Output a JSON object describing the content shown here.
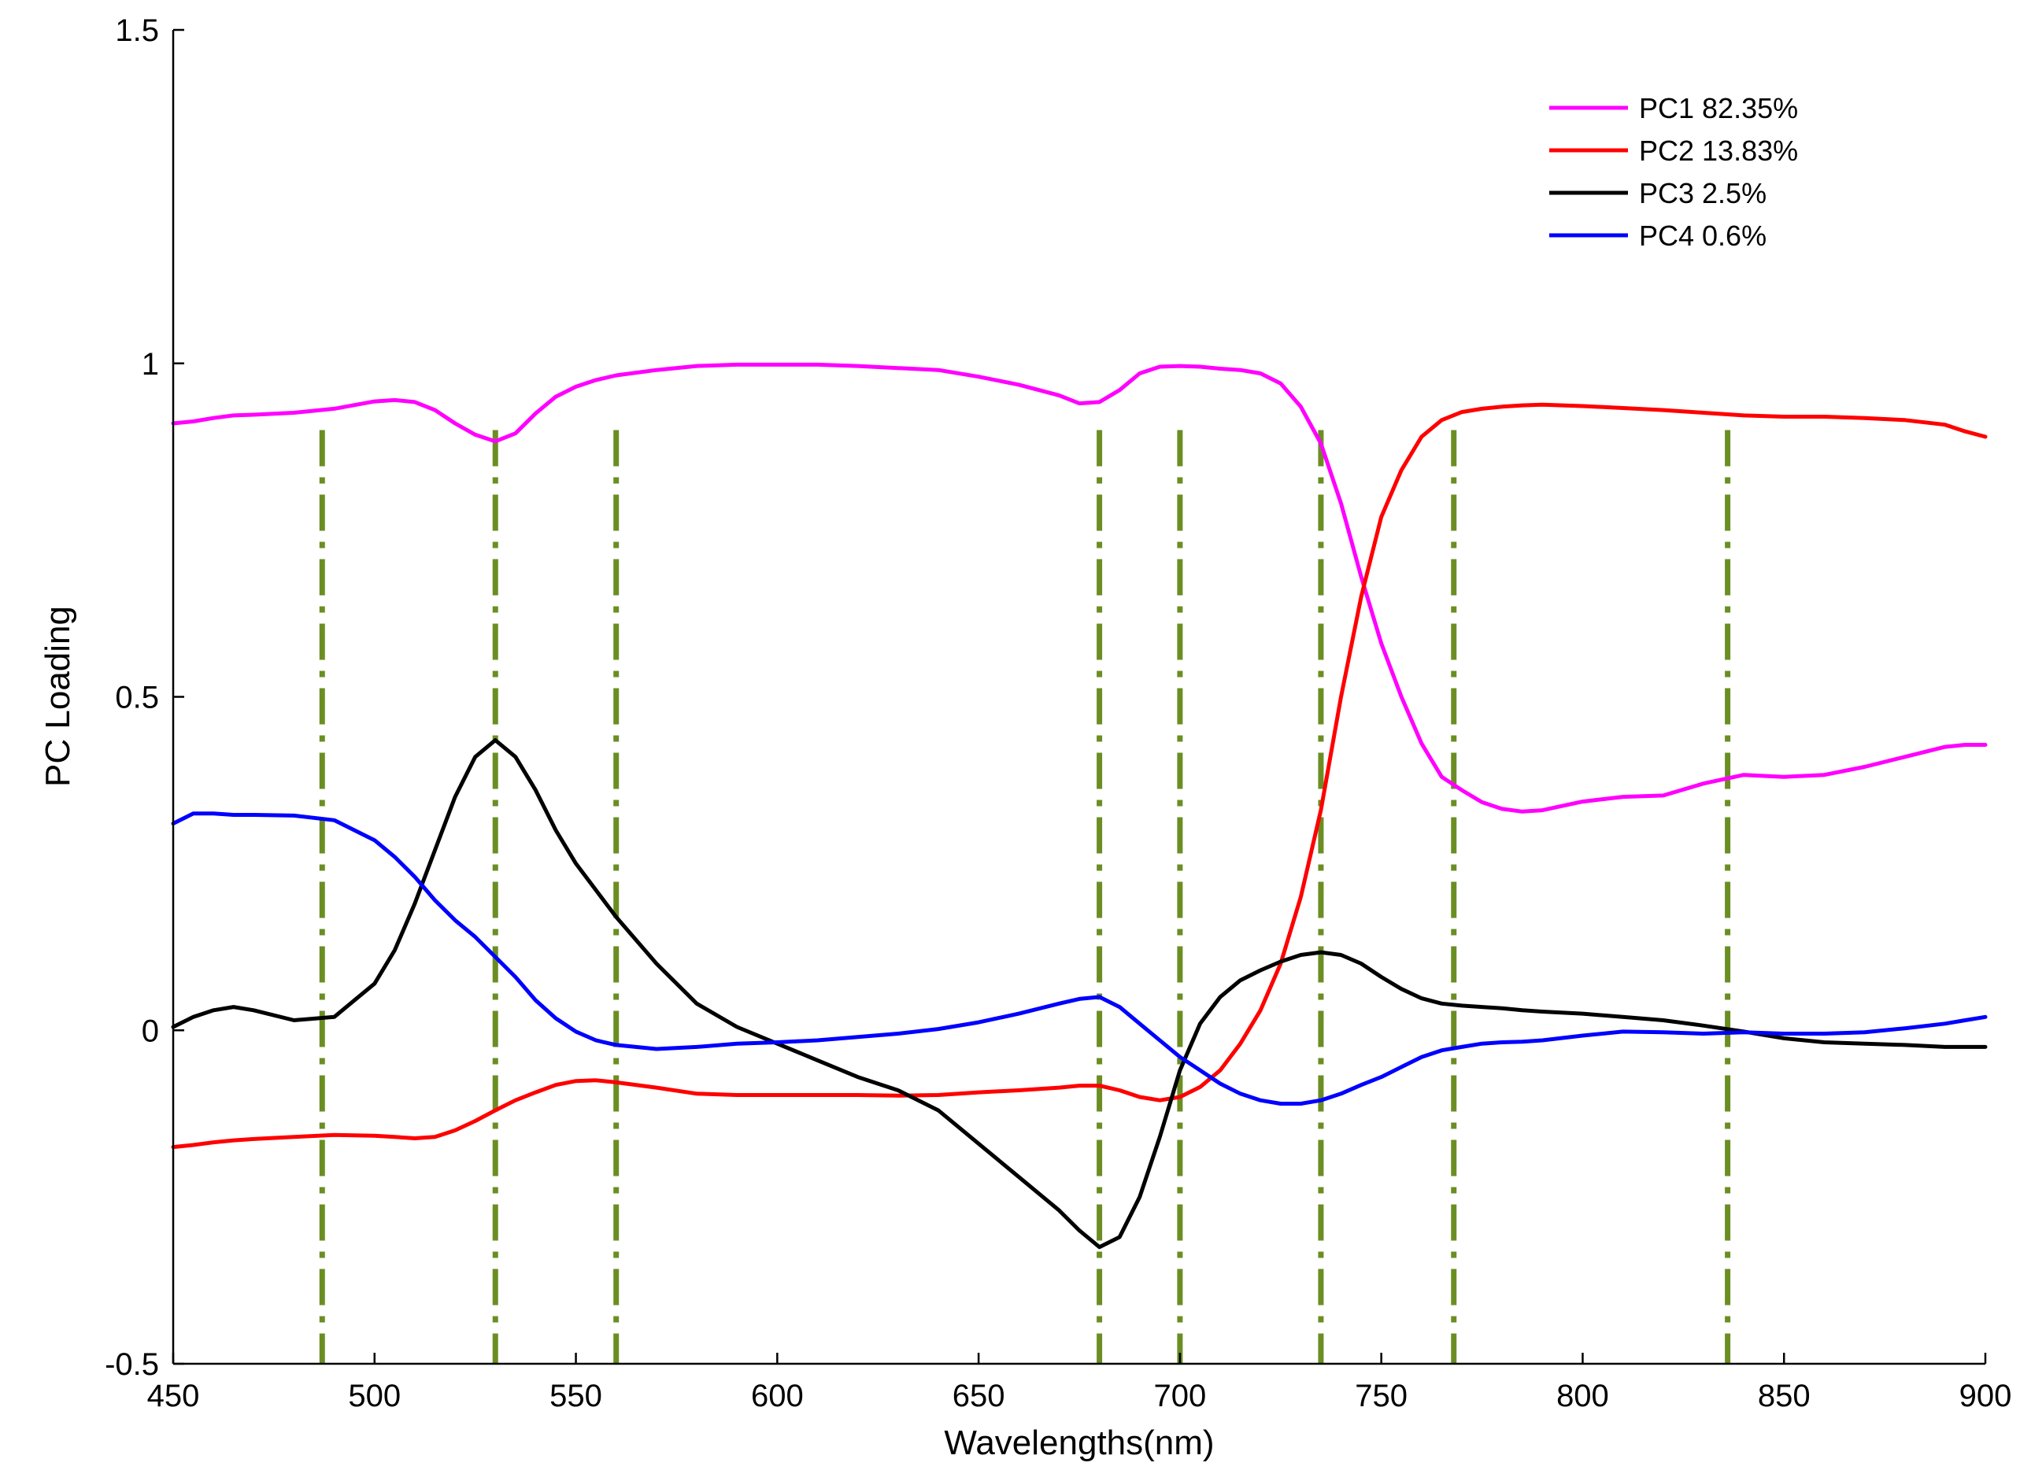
{
  "chart_data": {
    "type": "line",
    "title": "",
    "xlabel": "Wavelengths(nm)",
    "ylabel": "PC Loading",
    "xlim": [
      450,
      900
    ],
    "ylim": [
      -0.5,
      1.5
    ],
    "xticks": [
      450,
      500,
      550,
      600,
      650,
      700,
      750,
      800,
      850,
      900
    ],
    "yticks": [
      -0.5,
      0,
      0.5,
      1,
      1.5
    ],
    "xtick_labels": [
      "450",
      "500",
      "550",
      "600",
      "650",
      "700",
      "750",
      "800",
      "850",
      "900"
    ],
    "ytick_labels": [
      "-0.5",
      "0",
      "0.5",
      "1",
      "1.5"
    ],
    "grid": false,
    "legend_position": "top-right",
    "series": [
      {
        "name": "PC1 82.35%",
        "color": "#ff00ff",
        "x": [
          450,
          455,
          460,
          465,
          470,
          480,
          490,
          500,
          505,
          510,
          515,
          520,
          525,
          530,
          535,
          540,
          545,
          550,
          555,
          560,
          570,
          580,
          590,
          600,
          610,
          620,
          630,
          640,
          650,
          660,
          670,
          675,
          680,
          685,
          690,
          695,
          700,
          705,
          710,
          715,
          720,
          725,
          730,
          735,
          740,
          745,
          750,
          755,
          760,
          765,
          770,
          775,
          780,
          785,
          790,
          800,
          810,
          820,
          830,
          840,
          850,
          860,
          870,
          880,
          890,
          895,
          900
        ],
        "y": [
          0.91,
          0.913,
          0.918,
          0.922,
          0.923,
          0.926,
          0.932,
          0.943,
          0.945,
          0.942,
          0.93,
          0.91,
          0.893,
          0.883,
          0.895,
          0.925,
          0.95,
          0.965,
          0.975,
          0.982,
          0.99,
          0.996,
          0.998,
          0.998,
          0.998,
          0.996,
          0.993,
          0.99,
          0.98,
          0.968,
          0.952,
          0.94,
          0.942,
          0.96,
          0.985,
          0.995,
          0.996,
          0.995,
          0.992,
          0.99,
          0.985,
          0.97,
          0.935,
          0.88,
          0.79,
          0.68,
          0.58,
          0.5,
          0.43,
          0.38,
          0.36,
          0.342,
          0.332,
          0.328,
          0.33,
          0.343,
          0.35,
          0.352,
          0.37,
          0.383,
          0.38,
          0.383,
          0.395,
          0.41,
          0.425,
          0.428,
          0.428
        ]
      },
      {
        "name": "PC2 13.83%",
        "color": "#ff0000",
        "x": [
          450,
          455,
          460,
          465,
          470,
          480,
          490,
          500,
          505,
          510,
          515,
          520,
          525,
          530,
          535,
          540,
          545,
          550,
          555,
          560,
          570,
          580,
          590,
          600,
          610,
          620,
          630,
          640,
          650,
          660,
          670,
          675,
          680,
          685,
          690,
          695,
          700,
          705,
          710,
          715,
          720,
          725,
          730,
          735,
          740,
          745,
          750,
          755,
          760,
          765,
          770,
          775,
          780,
          785,
          790,
          800,
          810,
          820,
          830,
          840,
          850,
          860,
          870,
          880,
          890,
          895,
          900
        ],
        "y": [
          -0.175,
          -0.172,
          -0.168,
          -0.165,
          -0.163,
          -0.16,
          -0.157,
          -0.158,
          -0.16,
          -0.162,
          -0.16,
          -0.15,
          -0.136,
          -0.12,
          -0.105,
          -0.093,
          -0.082,
          -0.076,
          -0.075,
          -0.078,
          -0.086,
          -0.095,
          -0.097,
          -0.097,
          -0.097,
          -0.097,
          -0.098,
          -0.097,
          -0.093,
          -0.09,
          -0.086,
          -0.083,
          -0.083,
          -0.09,
          -0.1,
          -0.105,
          -0.1,
          -0.085,
          -0.06,
          -0.02,
          0.03,
          0.1,
          0.2,
          0.33,
          0.5,
          0.65,
          0.77,
          0.84,
          0.89,
          0.915,
          0.927,
          0.932,
          0.935,
          0.937,
          0.938,
          0.936,
          0.933,
          0.93,
          0.926,
          0.922,
          0.92,
          0.92,
          0.918,
          0.915,
          0.908,
          0.898,
          0.89
        ]
      },
      {
        "name": "PC3 2.5%",
        "color": "#000000",
        "x": [
          450,
          455,
          460,
          465,
          470,
          480,
          490,
          500,
          505,
          510,
          515,
          520,
          525,
          530,
          535,
          540,
          545,
          550,
          555,
          560,
          570,
          580,
          590,
          600,
          610,
          620,
          630,
          640,
          650,
          660,
          670,
          675,
          680,
          685,
          690,
          695,
          700,
          705,
          710,
          715,
          720,
          725,
          730,
          735,
          740,
          745,
          750,
          755,
          760,
          765,
          770,
          775,
          780,
          785,
          790,
          800,
          810,
          820,
          830,
          840,
          850,
          860,
          870,
          880,
          890,
          895,
          900
        ],
        "y": [
          0.005,
          0.02,
          0.03,
          0.035,
          0.03,
          0.015,
          0.02,
          0.07,
          0.12,
          0.19,
          0.27,
          0.35,
          0.41,
          0.435,
          0.41,
          0.36,
          0.3,
          0.25,
          0.21,
          0.17,
          0.1,
          0.04,
          0.005,
          -0.02,
          -0.045,
          -0.07,
          -0.09,
          -0.12,
          -0.17,
          -0.22,
          -0.27,
          -0.3,
          -0.325,
          -0.31,
          -0.25,
          -0.16,
          -0.06,
          0.01,
          0.05,
          0.075,
          0.09,
          0.103,
          0.113,
          0.117,
          0.113,
          0.1,
          0.08,
          0.062,
          0.048,
          0.04,
          0.037,
          0.035,
          0.033,
          0.03,
          0.028,
          0.025,
          0.02,
          0.015,
          0.007,
          -0.002,
          -0.012,
          -0.018,
          -0.02,
          -0.022,
          -0.025,
          -0.025,
          -0.025
        ]
      },
      {
        "name": "PC4 0.6%",
        "color": "#0000ff",
        "x": [
          450,
          455,
          460,
          465,
          470,
          480,
          490,
          500,
          505,
          510,
          515,
          520,
          525,
          530,
          535,
          540,
          545,
          550,
          555,
          560,
          570,
          580,
          590,
          600,
          610,
          620,
          630,
          640,
          650,
          660,
          670,
          675,
          680,
          685,
          690,
          695,
          700,
          705,
          710,
          715,
          720,
          725,
          730,
          735,
          740,
          745,
          750,
          755,
          760,
          765,
          770,
          775,
          780,
          785,
          790,
          800,
          810,
          820,
          830,
          840,
          850,
          860,
          870,
          880,
          890,
          895,
          900
        ],
        "y": [
          0.31,
          0.325,
          0.325,
          0.323,
          0.323,
          0.322,
          0.315,
          0.285,
          0.26,
          0.23,
          0.195,
          0.165,
          0.14,
          0.11,
          0.08,
          0.045,
          0.018,
          -0.002,
          -0.015,
          -0.022,
          -0.028,
          -0.025,
          -0.02,
          -0.018,
          -0.015,
          -0.01,
          -0.005,
          0.002,
          0.012,
          0.025,
          0.04,
          0.047,
          0.05,
          0.035,
          0.01,
          -0.015,
          -0.04,
          -0.06,
          -0.08,
          -0.095,
          -0.105,
          -0.11,
          -0.11,
          -0.105,
          -0.095,
          -0.082,
          -0.07,
          -0.055,
          -0.04,
          -0.03,
          -0.025,
          -0.02,
          -0.018,
          -0.017,
          -0.015,
          -0.008,
          -0.002,
          -0.003,
          -0.005,
          -0.003,
          -0.005,
          -0.005,
          -0.003,
          0.003,
          0.01,
          0.015,
          0.02
        ]
      }
    ],
    "vlines": [
      {
        "x": 487,
        "style": "dash-dot",
        "color": "#6b8e23"
      },
      {
        "x": 530,
        "style": "dash-dot",
        "color": "#6b8e23"
      },
      {
        "x": 560,
        "style": "dash-dot",
        "color": "#6b8e23"
      },
      {
        "x": 680,
        "style": "dash-dot",
        "color": "#6b8e23"
      },
      {
        "x": 700,
        "style": "dash-dot",
        "color": "#6b8e23"
      },
      {
        "x": 735,
        "style": "dash-dot",
        "color": "#6b8e23"
      },
      {
        "x": 768,
        "style": "dash-dot",
        "color": "#6b8e23"
      },
      {
        "x": 836,
        "style": "dash-dot",
        "color": "#6b8e23"
      }
    ]
  }
}
